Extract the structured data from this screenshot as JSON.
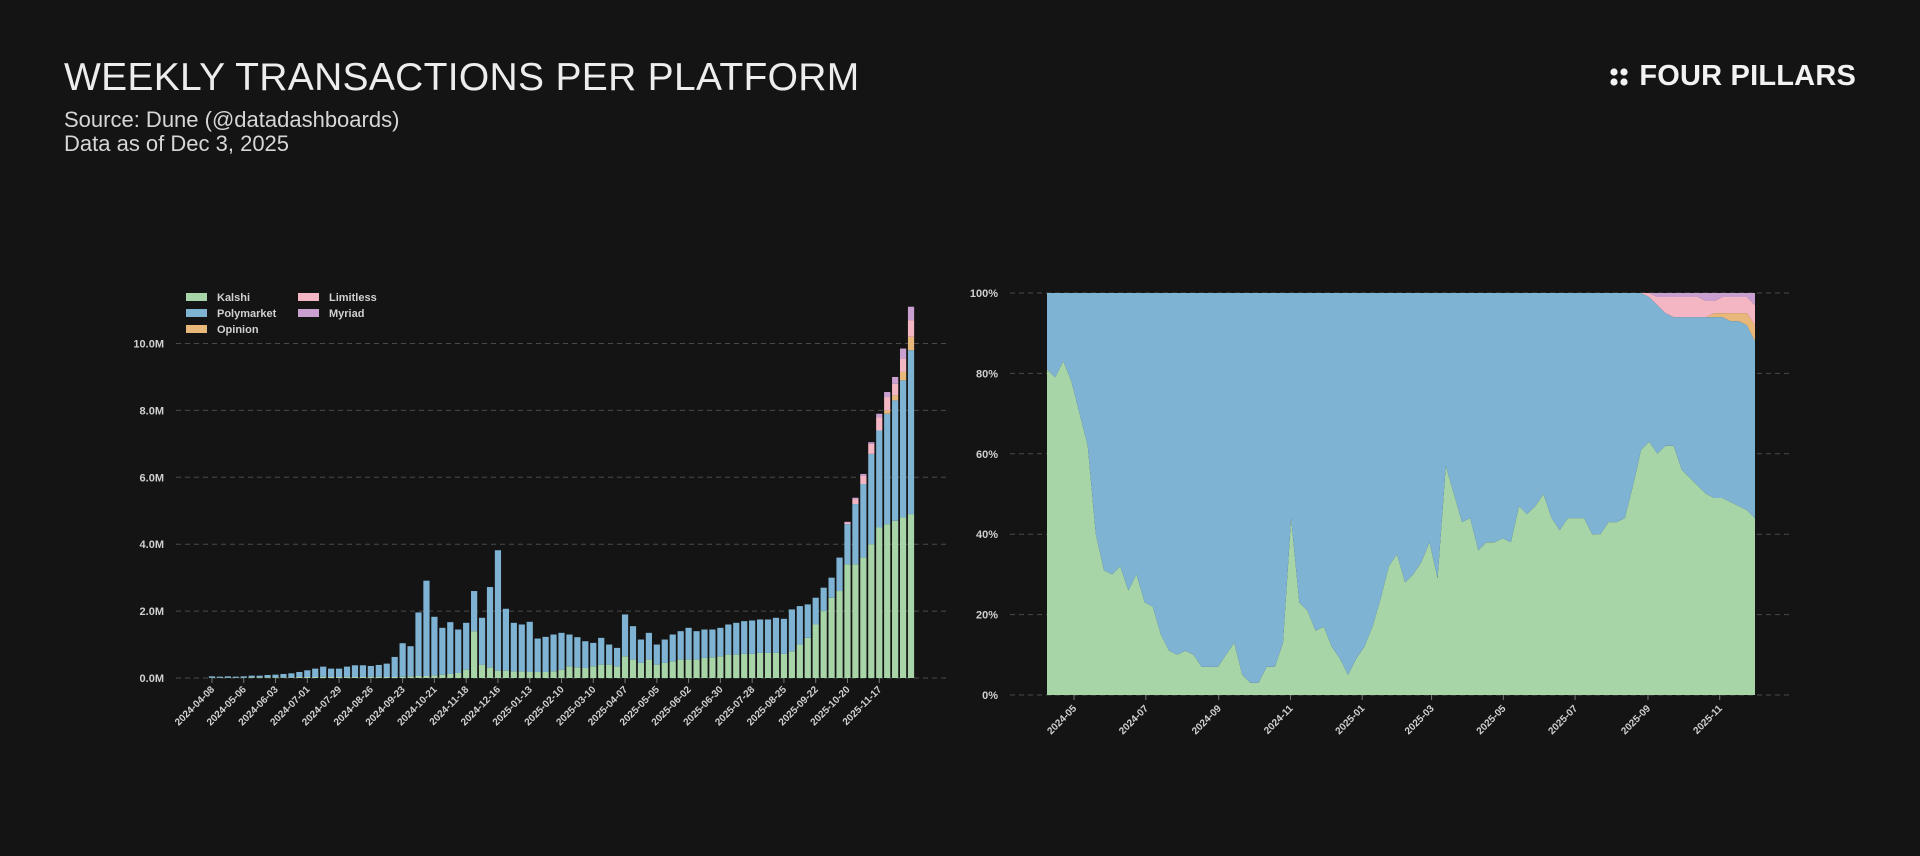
{
  "header": {
    "title": "WEEKLY TRANSACTIONS PER PLATFORM",
    "source": "Source: Dune (@datadashboards)",
    "date": "Data as of Dec 3, 2025"
  },
  "brand": {
    "name": "FOUR PILLARS",
    "icon": "four-dots-icon"
  },
  "colors": {
    "Kalshi": "#a8d5a8",
    "Polymarket": "#7eb3d4",
    "Opinion": "#e8b87a",
    "Limitless": "#f4b6c2",
    "Myriad": "#c9a0d0",
    "grid": "#4a4a4a",
    "text": "#d0d0d0"
  },
  "chart_data": [
    {
      "type": "bar",
      "stacked": true,
      "legend": {
        "position": "top-left",
        "entries": [
          "Kalshi",
          "Polymarket",
          "Opinion",
          "Limitless",
          "Myriad"
        ]
      },
      "y_ticks": [
        "0.0M",
        "2.0M",
        "4.0M",
        "6.0M",
        "8.0M",
        "10.0M"
      ],
      "ylim": [
        0,
        11.6
      ],
      "x_ticks": [
        "2024-04-08",
        "2024-05-06",
        "2024-06-03",
        "2024-07-01",
        "2024-07-29",
        "2024-08-26",
        "2024-09-23",
        "2024-10-21",
        "2024-11-18",
        "2024-12-16",
        "2025-01-13",
        "2025-02-10",
        "2025-03-10",
        "2025-04-07",
        "2025-05-05",
        "2025-06-02",
        "2025-06-30",
        "2025-07-28",
        "2025-08-25",
        "2025-09-22",
        "2025-10-20",
        "2025-11-17"
      ],
      "x_tick_every": 4,
      "grid": true,
      "series": [
        {
          "name": "Kalshi",
          "values": [
            0.01,
            0.01,
            0.01,
            0.01,
            0.01,
            0.02,
            0.02,
            0.02,
            0.02,
            0.02,
            0.02,
            0.03,
            0.03,
            0.03,
            0.04,
            0.03,
            0.03,
            0.04,
            0.03,
            0.03,
            0.04,
            0.04,
            0.03,
            0.03,
            0.04,
            0.05,
            0.06,
            0.06,
            0.08,
            0.1,
            0.12,
            0.15,
            0.25,
            1.4,
            0.4,
            0.32,
            0.22,
            0.22,
            0.2,
            0.2,
            0.18,
            0.18,
            0.18,
            0.2,
            0.25,
            0.35,
            0.32,
            0.3,
            0.35,
            0.4,
            0.4,
            0.35,
            0.65,
            0.55,
            0.45,
            0.55,
            0.4,
            0.45,
            0.5,
            0.55,
            0.55,
            0.55,
            0.6,
            0.62,
            0.65,
            0.7,
            0.7,
            0.72,
            0.72,
            0.75,
            0.75,
            0.75,
            0.72,
            0.8,
            1.0,
            1.2,
            1.6,
            2.0,
            2.4,
            2.6,
            3.4,
            3.4,
            3.6,
            4.0,
            4.5,
            4.6,
            4.7,
            4.8,
            4.9
          ]
        },
        {
          "name": "Polymarket",
          "values": [
            0.04,
            0.03,
            0.04,
            0.03,
            0.04,
            0.05,
            0.05,
            0.07,
            0.08,
            0.1,
            0.12,
            0.15,
            0.2,
            0.25,
            0.3,
            0.25,
            0.25,
            0.3,
            0.35,
            0.35,
            0.32,
            0.35,
            0.4,
            0.6,
            1.0,
            0.9,
            1.9,
            2.85,
            1.75,
            1.4,
            1.55,
            1.3,
            1.4,
            1.2,
            1.4,
            2.4,
            3.6,
            1.85,
            1.45,
            1.4,
            1.5,
            1.0,
            1.05,
            1.1,
            1.1,
            0.95,
            0.9,
            0.8,
            0.7,
            0.8,
            0.6,
            0.55,
            1.25,
            1.0,
            0.7,
            0.8,
            0.6,
            0.7,
            0.8,
            0.85,
            0.95,
            0.85,
            0.85,
            0.83,
            0.85,
            0.9,
            0.95,
            0.98,
            1.0,
            1.0,
            1.0,
            1.05,
            1.05,
            1.25,
            1.15,
            1.0,
            0.8,
            0.7,
            0.6,
            1.0,
            1.2,
            1.8,
            2.2,
            2.7,
            2.9,
            3.3,
            3.6,
            4.1,
            4.9
          ]
        },
        {
          "name": "Opinion",
          "values": [
            0,
            0,
            0,
            0,
            0,
            0,
            0,
            0,
            0,
            0,
            0,
            0,
            0,
            0,
            0,
            0,
            0,
            0,
            0,
            0,
            0,
            0,
            0,
            0,
            0,
            0,
            0,
            0,
            0,
            0,
            0,
            0,
            0,
            0,
            0,
            0,
            0,
            0,
            0,
            0,
            0,
            0,
            0,
            0,
            0,
            0,
            0,
            0,
            0,
            0,
            0,
            0,
            0,
            0,
            0,
            0,
            0,
            0,
            0,
            0,
            0,
            0,
            0,
            0,
            0,
            0,
            0,
            0,
            0,
            0,
            0,
            0,
            0,
            0,
            0,
            0,
            0,
            0,
            0,
            0,
            0,
            0,
            0,
            0,
            0,
            0.1,
            0.15,
            0.25,
            0.4
          ]
        },
        {
          "name": "Limitless",
          "values": [
            0,
            0,
            0,
            0,
            0,
            0,
            0,
            0,
            0,
            0,
            0,
            0,
            0,
            0,
            0,
            0,
            0,
            0,
            0,
            0,
            0,
            0,
            0,
            0,
            0,
            0,
            0,
            0,
            0,
            0,
            0,
            0,
            0,
            0,
            0,
            0,
            0,
            0,
            0,
            0,
            0,
            0,
            0,
            0,
            0,
            0,
            0,
            0,
            0,
            0,
            0,
            0,
            0,
            0,
            0,
            0,
            0,
            0,
            0,
            0,
            0,
            0,
            0,
            0,
            0,
            0,
            0,
            0,
            0,
            0,
            0,
            0,
            0,
            0,
            0,
            0,
            0,
            0,
            0,
            0,
            0.05,
            0.15,
            0.25,
            0.3,
            0.4,
            0.4,
            0.35,
            0.4,
            0.5,
            0.5
          ]
        },
        {
          "name": "Myriad",
          "values": [
            0,
            0,
            0,
            0,
            0,
            0,
            0,
            0,
            0,
            0,
            0,
            0,
            0,
            0,
            0,
            0,
            0,
            0,
            0,
            0,
            0,
            0,
            0,
            0,
            0,
            0,
            0,
            0,
            0,
            0,
            0,
            0,
            0,
            0,
            0,
            0,
            0,
            0,
            0,
            0,
            0,
            0,
            0,
            0,
            0,
            0,
            0,
            0,
            0,
            0,
            0,
            0,
            0,
            0,
            0,
            0,
            0,
            0,
            0,
            0,
            0,
            0,
            0,
            0,
            0,
            0,
            0,
            0,
            0,
            0,
            0,
            0,
            0,
            0,
            0,
            0,
            0,
            0,
            0,
            0,
            0.02,
            0.04,
            0.05,
            0.05,
            0.1,
            0.15,
            0.2,
            0.3,
            0.4,
            0.6
          ]
        }
      ]
    },
    {
      "type": "area",
      "stacked": true,
      "normalized": true,
      "y_ticks": [
        "0%",
        "20%",
        "40%",
        "60%",
        "80%",
        "100%"
      ],
      "ylim": [
        0,
        100
      ],
      "x_ticks": [
        "2024-05",
        "2024-07",
        "2024-09",
        "2024-11",
        "2025-01",
        "2025-03",
        "2025-05",
        "2025-07",
        "2025-09",
        "2025-11"
      ],
      "x_start": "2024-04-08",
      "x_end": "2025-12-01",
      "x_tick_positions": [
        "2024-05-01",
        "2024-07-01",
        "2024-09-01",
        "2024-11-01",
        "2025-01-01",
        "2025-03-01",
        "2025-05-01",
        "2025-07-01",
        "2025-09-01",
        "2025-11-01"
      ],
      "grid": true,
      "series": [
        {
          "name": "Kalshi",
          "values": [
            81,
            79,
            83,
            78,
            70,
            62,
            40,
            31,
            30,
            32,
            26,
            30,
            23,
            22,
            15,
            11,
            10,
            11,
            10,
            7,
            7,
            7,
            10,
            13,
            5,
            3,
            3,
            7,
            7,
            13,
            44,
            23,
            21,
            16,
            17,
            12,
            9,
            5,
            9,
            12,
            17,
            24,
            32,
            35,
            28,
            30,
            33,
            38,
            29,
            57,
            50,
            43,
            44,
            36,
            38,
            38,
            39,
            38,
            47,
            45,
            47,
            50,
            44,
            41,
            44,
            44,
            44,
            40,
            40,
            43,
            43,
            44,
            52,
            61,
            63,
            60,
            62,
            62,
            56,
            54,
            52,
            50,
            49,
            49,
            48,
            47,
            46,
            44
          ]
        },
        {
          "name": "Polymarket",
          "values": [
            19,
            21,
            17,
            22,
            30,
            38,
            60,
            69,
            70,
            68,
            74,
            70,
            77,
            78,
            85,
            89,
            90,
            89,
            90,
            93,
            93,
            93,
            90,
            87,
            95,
            97,
            97,
            93,
            93,
            87,
            56,
            77,
            79,
            84,
            83,
            88,
            91,
            95,
            91,
            88,
            83,
            76,
            68,
            65,
            72,
            70,
            67,
            62,
            71,
            43,
            50,
            57,
            56,
            64,
            62,
            62,
            61,
            62,
            53,
            55,
            53,
            50,
            56,
            59,
            56,
            56,
            56,
            60,
            60,
            57,
            57,
            56,
            48,
            39,
            36,
            37,
            33,
            32,
            38,
            40,
            42,
            44,
            45,
            45,
            45,
            46,
            46,
            44
          ]
        },
        {
          "name": "Opinion",
          "values": [
            0,
            0,
            0,
            0,
            0,
            0,
            0,
            0,
            0,
            0,
            0,
            0,
            0,
            0,
            0,
            0,
            0,
            0,
            0,
            0,
            0,
            0,
            0,
            0,
            0,
            0,
            0,
            0,
            0,
            0,
            0,
            0,
            0,
            0,
            0,
            0,
            0,
            0,
            0,
            0,
            0,
            0,
            0,
            0,
            0,
            0,
            0,
            0,
            0,
            0,
            0,
            0,
            0,
            0,
            0,
            0,
            0,
            0,
            0,
            0,
            0,
            0,
            0,
            0,
            0,
            0,
            0,
            0,
            0,
            0,
            0,
            0,
            0,
            0,
            0,
            0,
            0,
            0,
            0,
            0,
            0,
            0,
            1,
            1,
            2,
            2,
            3,
            4
          ]
        },
        {
          "name": "Limitless",
          "values": [
            0,
            0,
            0,
            0,
            0,
            0,
            0,
            0,
            0,
            0,
            0,
            0,
            0,
            0,
            0,
            0,
            0,
            0,
            0,
            0,
            0,
            0,
            0,
            0,
            0,
            0,
            0,
            0,
            0,
            0,
            0,
            0,
            0,
            0,
            0,
            0,
            0,
            0,
            0,
            0,
            0,
            0,
            0,
            0,
            0,
            0,
            0,
            0,
            0,
            0,
            0,
            0,
            0,
            0,
            0,
            0,
            0,
            0,
            0,
            0,
            0,
            0,
            0,
            0,
            0,
            0,
            0,
            0,
            0,
            0,
            0,
            0,
            0,
            0,
            1,
            2,
            4,
            5,
            5,
            5,
            5,
            4,
            3,
            4,
            4,
            4,
            4,
            5
          ]
        },
        {
          "name": "Myriad",
          "values": [
            0,
            0,
            0,
            0,
            0,
            0,
            0,
            0,
            0,
            0,
            0,
            0,
            0,
            0,
            0,
            0,
            0,
            0,
            0,
            0,
            0,
            0,
            0,
            0,
            0,
            0,
            0,
            0,
            0,
            0,
            0,
            0,
            0,
            0,
            0,
            0,
            0,
            0,
            0,
            0,
            0,
            0,
            0,
            0,
            0,
            0,
            0,
            0,
            0,
            0,
            0,
            0,
            0,
            0,
            0,
            0,
            0,
            0,
            0,
            0,
            0,
            0,
            0,
            0,
            0,
            0,
            0,
            0,
            0,
            0,
            0,
            0,
            0,
            0,
            0,
            1,
            1,
            1,
            1,
            1,
            1,
            2,
            2,
            2,
            2,
            2,
            2,
            3
          ]
        }
      ]
    }
  ]
}
